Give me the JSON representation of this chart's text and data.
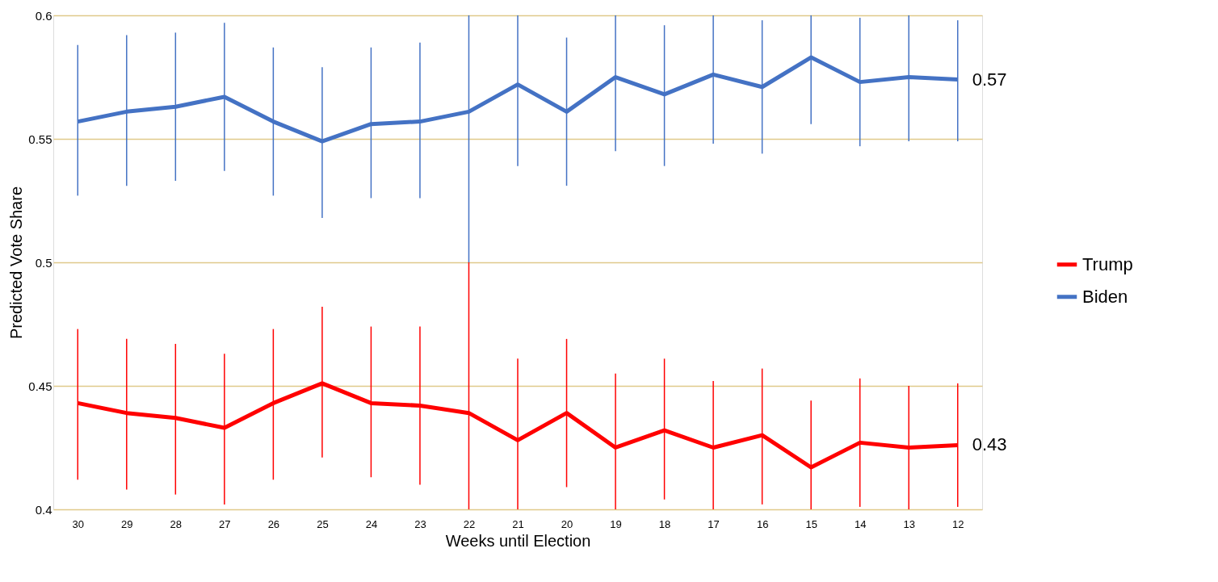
{
  "chart_data": {
    "type": "line",
    "xlabel": "Weeks until Election",
    "ylabel": "Predicted Vote Share",
    "categories": [
      "30",
      "29",
      "28",
      "27",
      "26",
      "25",
      "24",
      "23",
      "22",
      "21",
      "20",
      "19",
      "18",
      "17",
      "16",
      "15",
      "14",
      "13",
      "12"
    ],
    "ylim": [
      0.4,
      0.6
    ],
    "yticks": [
      0.4,
      0.45,
      0.5,
      0.55,
      0.6
    ],
    "grid": "y",
    "legend": "right",
    "marker": "none",
    "line_style": "solid",
    "series": [
      {
        "name": "Trump",
        "color": "#ff0000",
        "values": [
          0.443,
          0.439,
          0.437,
          0.433,
          0.443,
          0.451,
          0.443,
          0.442,
          0.439,
          0.428,
          0.439,
          0.425,
          0.432,
          0.425,
          0.43,
          0.417,
          0.427,
          0.425,
          0.426
        ],
        "errors": [
          [
            0.412,
            0.473
          ],
          [
            0.408,
            0.469
          ],
          [
            0.406,
            0.467
          ],
          [
            0.402,
            0.463
          ],
          [
            0.412,
            0.473
          ],
          [
            0.421,
            0.482
          ],
          [
            0.413,
            0.474
          ],
          [
            0.41,
            0.474
          ],
          [
            0.4,
            0.5
          ],
          [
            0.4,
            0.461
          ],
          [
            0.409,
            0.469
          ],
          [
            0.4,
            0.455
          ],
          [
            0.404,
            0.461
          ],
          [
            0.4,
            0.452
          ],
          [
            0.402,
            0.457
          ],
          [
            0.4,
            0.444
          ],
          [
            0.401,
            0.453
          ],
          [
            0.4,
            0.45
          ],
          [
            0.401,
            0.451
          ]
        ]
      },
      {
        "name": "Biden",
        "color": "#4472c4",
        "values": [
          0.557,
          0.561,
          0.563,
          0.567,
          0.557,
          0.549,
          0.556,
          0.557,
          0.561,
          0.572,
          0.561,
          0.575,
          0.568,
          0.576,
          0.571,
          0.583,
          0.573,
          0.575,
          0.574
        ],
        "errors": [
          [
            0.527,
            0.588
          ],
          [
            0.531,
            0.592
          ],
          [
            0.533,
            0.593
          ],
          [
            0.537,
            0.597
          ],
          [
            0.527,
            0.587
          ],
          [
            0.518,
            0.579
          ],
          [
            0.526,
            0.587
          ],
          [
            0.526,
            0.589
          ],
          [
            0.5,
            0.6
          ],
          [
            0.539,
            0.6
          ],
          [
            0.531,
            0.591
          ],
          [
            0.545,
            0.6
          ],
          [
            0.539,
            0.596
          ],
          [
            0.548,
            0.6
          ],
          [
            0.544,
            0.598
          ],
          [
            0.556,
            0.6
          ],
          [
            0.547,
            0.599
          ],
          [
            0.549,
            0.6
          ],
          [
            0.549,
            0.598
          ]
        ]
      }
    ],
    "annotations": [
      {
        "text": "0.57",
        "x": "12",
        "y": 0.574
      },
      {
        "text": "0.43",
        "x": "12",
        "y": 0.426
      }
    ]
  }
}
